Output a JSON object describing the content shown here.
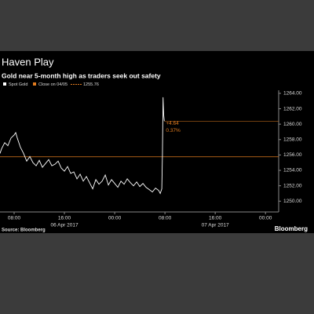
{
  "chart_data": {
    "type": "line",
    "title": "Haven Play",
    "subtitle": "Gold near 5-month high as traders seek out safety",
    "source": "Source: Bloomberg",
    "brand": "Bloomberg",
    "x": [
      5.75,
      6,
      6.5,
      7,
      7.5,
      8,
      8.25,
      8.5,
      9,
      9.5,
      10,
      10.5,
      11,
      11.5,
      12,
      12.5,
      13,
      13.5,
      14,
      14.5,
      15,
      15.5,
      16,
      16.5,
      17,
      17.5,
      18,
      18.5,
      19,
      19.5,
      20,
      20.5,
      21,
      21.5,
      22,
      22.5,
      23,
      23.5,
      24,
      24.5,
      25,
      25.5,
      26,
      26.5,
      27,
      27.5,
      28,
      28.5,
      29,
      29.5,
      30,
      30.5,
      31,
      31.25,
      31.5,
      31.6,
      31.7,
      31.8,
      31.9
    ],
    "series": [
      {
        "name": "Spot Gold",
        "color": "#ffffff",
        "values": [
          1256.2,
          1256.8,
          1257.6,
          1257.2,
          1258.2,
          1258.6,
          1258.9,
          1258.2,
          1257.0,
          1256.2,
          1255.2,
          1255.8,
          1255.0,
          1254.6,
          1255.3,
          1254.4,
          1254.9,
          1255.4,
          1254.6,
          1254.8,
          1255.2,
          1254.3,
          1253.9,
          1254.5,
          1253.6,
          1253.8,
          1252.9,
          1253.5,
          1252.6,
          1253.2,
          1252.4,
          1251.6,
          1252.8,
          1252.2,
          1252.6,
          1253.4,
          1252.1,
          1252.8,
          1252.3,
          1251.8,
          1252.6,
          1252.2,
          1252.9,
          1252.4,
          1252.0,
          1252.5,
          1251.9,
          1252.3,
          1251.8,
          1251.5,
          1251.2,
          1251.7,
          1251.4,
          1251.0,
          1251.6,
          1256.0,
          1263.5,
          1261.2,
          1260.4
        ]
      }
    ],
    "close_line": {
      "name": "Close on 04/05",
      "value": 1255.76,
      "color": "#e07b1f"
    },
    "annotations": [
      "+4.64",
      "0.37%"
    ],
    "xlim": [
      5.75,
      50.1
    ],
    "xticks": [
      {
        "value": 8,
        "label": "08:00"
      },
      {
        "value": 16,
        "label": "16:00"
      },
      {
        "value": 24,
        "label": "00:00"
      },
      {
        "value": 32,
        "label": "08:00"
      },
      {
        "value": 40,
        "label": "16:00"
      },
      {
        "value": 48,
        "label": "00:00"
      }
    ],
    "date_labels": [
      {
        "value": 16,
        "label": "06 Apr 2017"
      },
      {
        "value": 40,
        "label": "07 Apr 2017"
      }
    ],
    "ylim": [
      1248.6,
      1264.4
    ],
    "yticks": [
      {
        "value": 1250,
        "label": "1250.00"
      },
      {
        "value": 1252,
        "label": "1252.00"
      },
      {
        "value": 1254,
        "label": "1254.00"
      },
      {
        "value": 1256,
        "label": "1256.00"
      },
      {
        "value": 1258,
        "label": "1258.00"
      },
      {
        "value": 1260,
        "label": "1260.00"
      },
      {
        "value": 1262,
        "label": "1262.00"
      },
      {
        "value": 1264,
        "label": "1264.00"
      }
    ]
  }
}
